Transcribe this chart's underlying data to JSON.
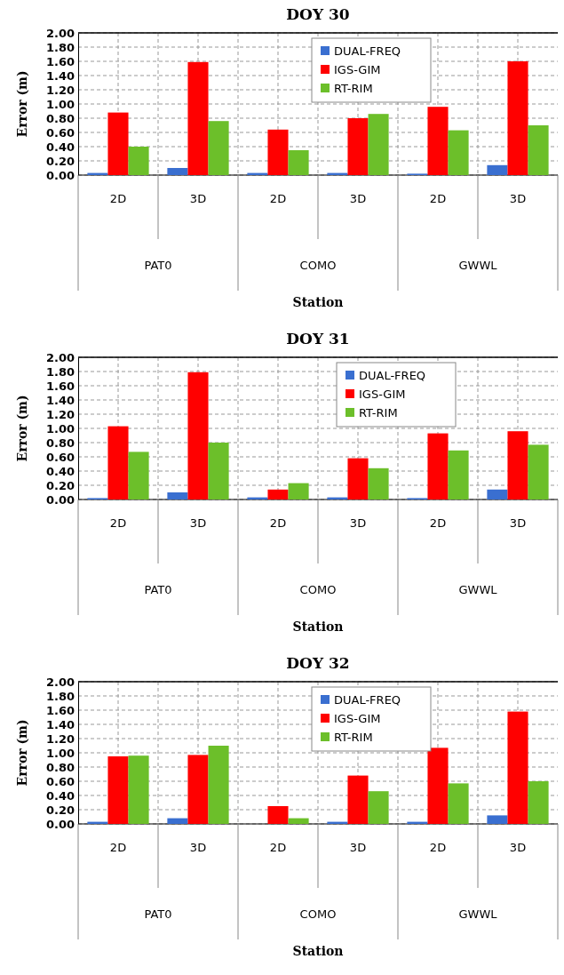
{
  "chart_data": [
    {
      "type": "bar",
      "title": "DOY 30",
      "xlabel": "Station",
      "ylabel": "Error (m)",
      "categories": [
        "2D",
        "3D",
        "2D",
        "3D",
        "2D",
        "3D"
      ],
      "annotations": [
        "PAT0",
        "COMO",
        "GWWL"
      ],
      "series": [
        {
          "name": "DUAL-FREQ",
          "color": "#3a6fd0",
          "values": [
            0.03,
            0.1,
            0.03,
            0.03,
            0.02,
            0.14
          ]
        },
        {
          "name": "IGS-GIM",
          "color": "#ff0000",
          "values": [
            0.88,
            1.59,
            0.64,
            0.8,
            0.96,
            1.6
          ]
        },
        {
          "name": "RT-RIM",
          "color": "#6cbf2a",
          "values": [
            0.4,
            0.76,
            0.35,
            0.86,
            0.63,
            0.7
          ]
        }
      ],
      "ylim": [
        0,
        2
      ],
      "yticks": [
        {
          "value": 0,
          "label": "0.00"
        },
        {
          "value": 0.2,
          "label": "0.20"
        },
        {
          "value": 0.4,
          "label": "0.40"
        },
        {
          "value": 0.6,
          "label": "0.60"
        },
        {
          "value": 0.8,
          "label": "0.80"
        },
        {
          "value": 1,
          "label": "1.00"
        },
        {
          "value": 1.2,
          "label": "1.20"
        },
        {
          "value": 1.4,
          "label": "1.40"
        },
        {
          "value": 1.6,
          "label": "1.60"
        },
        {
          "value": 1.8,
          "label": "1.80"
        },
        {
          "value": 2,
          "label": "2.00"
        }
      ],
      "grid": true,
      "legend": "top"
    },
    {
      "type": "bar",
      "title": "DOY 31",
      "xlabel": "Station",
      "ylabel": "Error (m)",
      "categories": [
        "2D",
        "3D",
        "2D",
        "3D",
        "2D",
        "3D"
      ],
      "annotations": [
        "PAT0",
        "COMO",
        "GWWL"
      ],
      "series": [
        {
          "name": "DUAL-FREQ",
          "color": "#3a6fd0",
          "values": [
            0.02,
            0.1,
            0.03,
            0.03,
            0.02,
            0.14
          ]
        },
        {
          "name": "IGS-GIM",
          "color": "#ff0000",
          "values": [
            1.03,
            1.79,
            0.14,
            0.58,
            0.93,
            0.96
          ]
        },
        {
          "name": "RT-RIM",
          "color": "#6cbf2a",
          "values": [
            0.67,
            0.8,
            0.23,
            0.44,
            0.69,
            0.77
          ]
        }
      ],
      "ylim": [
        0,
        2
      ],
      "yticks": [
        {
          "value": 0,
          "label": "0.00"
        },
        {
          "value": 0.2,
          "label": "0.20"
        },
        {
          "value": 0.4,
          "label": "0.40"
        },
        {
          "value": 0.6,
          "label": "0.60"
        },
        {
          "value": 0.8,
          "label": "0.80"
        },
        {
          "value": 1,
          "label": "1.00"
        },
        {
          "value": 1.2,
          "label": "1.20"
        },
        {
          "value": 1.4,
          "label": "1.40"
        },
        {
          "value": 1.6,
          "label": "1.60"
        },
        {
          "value": 1.8,
          "label": "1.80"
        },
        {
          "value": 2,
          "label": "2.00"
        }
      ],
      "grid": true,
      "legend": "top right"
    },
    {
      "type": "bar",
      "title": "DOY 32",
      "xlabel": "Station",
      "ylabel": "Error (m)",
      "categories": [
        "2D",
        "3D",
        "2D",
        "3D",
        "2D",
        "3D"
      ],
      "annotations": [
        "PAT0",
        "COMO",
        "GWWL"
      ],
      "series": [
        {
          "name": "DUAL-FREQ",
          "color": "#3a6fd0",
          "values": [
            0.03,
            0.08,
            0,
            0.03,
            0.03,
            0.12
          ]
        },
        {
          "name": "IGS-GIM",
          "color": "#ff0000",
          "values": [
            0.95,
            0.97,
            0.25,
            0.68,
            1.07,
            1.58
          ]
        },
        {
          "name": "RT-RIM",
          "color": "#6cbf2a",
          "values": [
            0.96,
            1.1,
            0.08,
            0.46,
            0.57,
            0.6
          ]
        }
      ],
      "ylim": [
        0,
        2
      ],
      "yticks": [
        {
          "value": 0,
          "label": "0.00"
        },
        {
          "value": 0.2,
          "label": "0.20"
        },
        {
          "value": 0.4,
          "label": "0.40"
        },
        {
          "value": 0.6,
          "label": "0.60"
        },
        {
          "value": 0.8,
          "label": "0.80"
        },
        {
          "value": 1,
          "label": "1.00"
        },
        {
          "value": 1.2,
          "label": "1.20"
        },
        {
          "value": 1.4,
          "label": "1.40"
        },
        {
          "value": 1.6,
          "label": "1.60"
        },
        {
          "value": 1.8,
          "label": "1.80"
        },
        {
          "value": 2,
          "label": "2.00"
        }
      ],
      "grid": true,
      "legend": "top"
    }
  ]
}
